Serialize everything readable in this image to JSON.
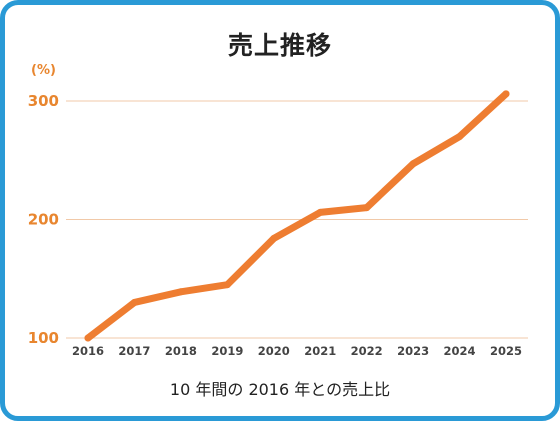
{
  "chart_data": {
    "type": "line",
    "title": "売上推移",
    "y_unit": "(%)",
    "caption": "10 年間の 2016 年との売上比",
    "x": [
      "2016",
      "2017",
      "2018",
      "2019",
      "2020",
      "2021",
      "2022",
      "2023",
      "2024",
      "2025"
    ],
    "series": [
      {
        "values": [
          100,
          130,
          139,
          145,
          184,
          206,
          210,
          247,
          270,
          306
        ]
      }
    ],
    "y_ticks": [
      100,
      200,
      300
    ],
    "ylim": [
      100,
      300
    ],
    "grid": true,
    "line_color": "#ee7d31",
    "axis_label_color": "#e8862f",
    "gridline_color": "#f1c9a8",
    "frame_color": "#2a9ad6"
  }
}
